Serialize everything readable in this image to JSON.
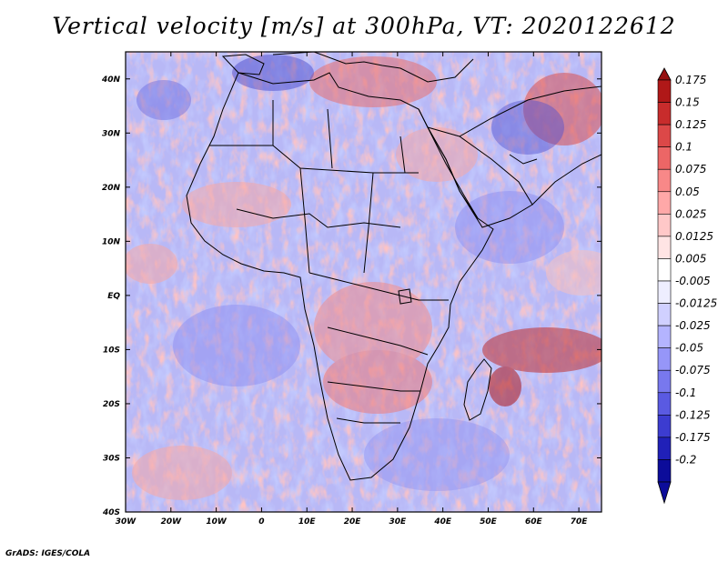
{
  "title": "Vertical velocity [m/s] at 300hPa, VT: 2020122612",
  "credit": "GrADS: IGES/COLA",
  "map": {
    "lon_range": [
      -30,
      75
    ],
    "lat_range": [
      -40,
      45
    ],
    "lon_ticks": [
      "30W",
      "20W",
      "10W",
      "0",
      "10E",
      "20E",
      "30E",
      "40E",
      "50E",
      "60E",
      "70E"
    ],
    "lat_ticks": [
      "40N",
      "30N",
      "20N",
      "10N",
      "EQ",
      "10S",
      "20S",
      "30S",
      "40S"
    ]
  },
  "colorbar": {
    "labels": [
      "0.175",
      "0.15",
      "0.125",
      "0.1",
      "0.075",
      "0.05",
      "0.025",
      "0.0125",
      "0.005",
      "-0.005",
      "-0.0125",
      "-0.025",
      "-0.05",
      "-0.075",
      "-0.1",
      "-0.125",
      "-0.175",
      "-0.2"
    ],
    "colors": [
      "#ffffff",
      "#ffffff",
      "#eeeeff",
      "#d0d0ff",
      "#b4b4ff",
      "#9696f8",
      "#7878ee",
      "#5a5ae2",
      "#3c3cd0",
      "#2020b8",
      "#0c0c9a",
      "#ffffff",
      "#ffe4e4",
      "#ffc8c8",
      "#ffa8a8",
      "#f88888",
      "#ec6666",
      "#dc4848",
      "#c82c2c",
      "#b01818",
      "#961010"
    ]
  }
}
